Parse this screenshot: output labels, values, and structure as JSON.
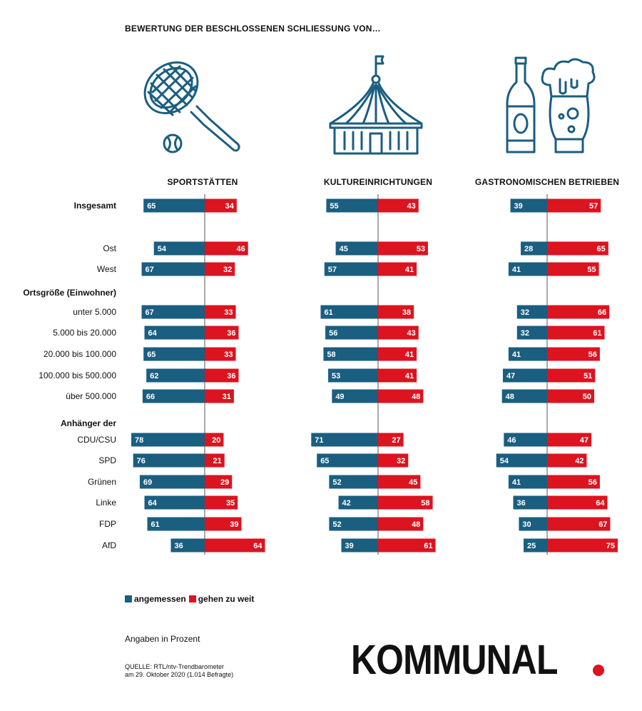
{
  "title": "BEWERTUNG DER BESCHLOSSENEN SCHLIESSUNG VON…",
  "colors": {
    "angemessen": "#1a5e80",
    "gehen_zu_weit": "#db1420",
    "icon": "#1a5e80",
    "axis": "#555555",
    "logo_dot": "#db1420"
  },
  "icons": [
    "tennis-racket-icon",
    "circus-tent-icon",
    "beer-bottle-glass-icon"
  ],
  "legend": {
    "angemessen": "angemessen",
    "gehen_zu_weit": "gehen zu weit"
  },
  "note": "Angaben in Prozent",
  "source_line1": "QUELLE: RTL/ntv-Trendbarometer",
  "source_line2": "am 29. Oktober 2020 (1.014 Befragte)",
  "logo": "KOMMUNAL",
  "chart_data": {
    "type": "diverging-bar",
    "unit": "Prozent",
    "columns": [
      "SPORTSTÄTTEN",
      "KULTUREINRICHTUNGEN",
      "GASTRONOMISCHEN BETRIEBEN"
    ],
    "group_headers": [
      {
        "label": "Ortsgröße (Einwohner)",
        "before_row": 3
      },
      {
        "label": "Anhänger der",
        "before_row": 8
      }
    ],
    "rows": [
      {
        "label": "Insgesamt",
        "bold": true,
        "values": [
          [
            65,
            34
          ],
          [
            55,
            43
          ],
          [
            39,
            57
          ]
        ]
      },
      {
        "label": "Ost",
        "values": [
          [
            54,
            46
          ],
          [
            45,
            53
          ],
          [
            28,
            65
          ]
        ]
      },
      {
        "label": "West",
        "values": [
          [
            67,
            32
          ],
          [
            57,
            41
          ],
          [
            41,
            55
          ]
        ]
      },
      {
        "label": "unter 5.000",
        "values": [
          [
            67,
            33
          ],
          [
            61,
            38
          ],
          [
            32,
            66
          ]
        ]
      },
      {
        "label": "5.000 bis 20.000",
        "values": [
          [
            64,
            36
          ],
          [
            56,
            43
          ],
          [
            32,
            61
          ]
        ]
      },
      {
        "label": "20.000 bis 100.000",
        "values": [
          [
            65,
            33
          ],
          [
            58,
            41
          ],
          [
            41,
            56
          ]
        ]
      },
      {
        "label": "100.000 bis 500.000",
        "values": [
          [
            62,
            36
          ],
          [
            53,
            41
          ],
          [
            47,
            51
          ]
        ]
      },
      {
        "label": "über 500.000",
        "values": [
          [
            66,
            31
          ],
          [
            49,
            48
          ],
          [
            48,
            50
          ]
        ]
      },
      {
        "label": "CDU/CSU",
        "values": [
          [
            78,
            20
          ],
          [
            71,
            27
          ],
          [
            46,
            47
          ]
        ]
      },
      {
        "label": "SPD",
        "values": [
          [
            76,
            21
          ],
          [
            65,
            32
          ],
          [
            54,
            42
          ]
        ]
      },
      {
        "label": "Grünen",
        "values": [
          [
            69,
            29
          ],
          [
            52,
            45
          ],
          [
            41,
            56
          ]
        ]
      },
      {
        "label": "Linke",
        "values": [
          [
            64,
            35
          ],
          [
            42,
            58
          ],
          [
            36,
            64
          ]
        ]
      },
      {
        "label": "FDP",
        "values": [
          [
            61,
            39
          ],
          [
            52,
            48
          ],
          [
            30,
            67
          ]
        ]
      },
      {
        "label": "AfD",
        "values": [
          [
            36,
            64
          ],
          [
            39,
            61
          ],
          [
            25,
            75
          ]
        ]
      }
    ],
    "series": [
      {
        "name": "angemessen",
        "side": "left"
      },
      {
        "name": "gehen zu weit",
        "side": "right"
      }
    ]
  }
}
